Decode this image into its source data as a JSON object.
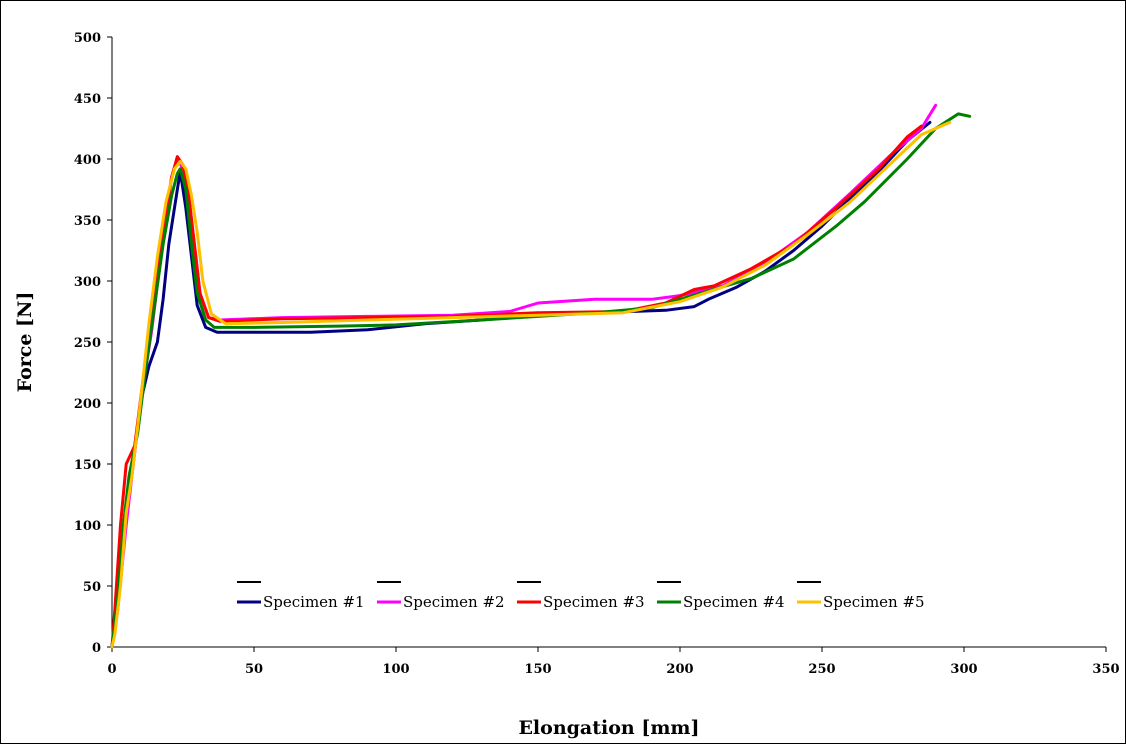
{
  "chart_data": {
    "type": "line",
    "title": "",
    "xlabel": "Elongation [mm]",
    "ylabel": "Force [N]",
    "xlim": [
      0,
      350
    ],
    "ylim": [
      0,
      500
    ],
    "x_ticks": [
      0,
      50,
      100,
      150,
      200,
      250,
      300,
      350
    ],
    "y_ticks": [
      0,
      50,
      100,
      150,
      200,
      250,
      300,
      350,
      400,
      450,
      500
    ],
    "grid": false,
    "legend_position": "bottom-center inside",
    "series": [
      {
        "name": "Specimen #1",
        "color": "#000080",
        "points": [
          [
            0,
            0
          ],
          [
            2,
            40
          ],
          [
            4,
            90
          ],
          [
            6,
            125
          ],
          [
            8,
            160
          ],
          [
            10,
            200
          ],
          [
            13,
            230
          ],
          [
            16,
            250
          ],
          [
            18,
            285
          ],
          [
            20,
            330
          ],
          [
            22,
            360
          ],
          [
            24,
            390
          ],
          [
            26,
            360
          ],
          [
            28,
            320
          ],
          [
            30,
            280
          ],
          [
            33,
            262
          ],
          [
            37,
            258
          ],
          [
            50,
            258
          ],
          [
            70,
            258
          ],
          [
            90,
            260
          ],
          [
            110,
            265
          ],
          [
            130,
            268
          ],
          [
            150,
            272
          ],
          [
            170,
            274
          ],
          [
            195,
            276
          ],
          [
            205,
            279
          ],
          [
            210,
            285
          ],
          [
            220,
            295
          ],
          [
            230,
            308
          ],
          [
            240,
            325
          ],
          [
            250,
            345
          ],
          [
            260,
            368
          ],
          [
            270,
            390
          ],
          [
            280,
            415
          ],
          [
            288,
            430
          ]
        ]
      },
      {
        "name": "Specimen #2",
        "color": "#FF00FF",
        "points": [
          [
            0,
            0
          ],
          [
            2,
            30
          ],
          [
            5,
            100
          ],
          [
            7,
            140
          ],
          [
            10,
            200
          ],
          [
            14,
            260
          ],
          [
            18,
            335
          ],
          [
            21,
            385
          ],
          [
            23,
            400
          ],
          [
            25,
            392
          ],
          [
            27,
            370
          ],
          [
            29,
            330
          ],
          [
            31,
            290
          ],
          [
            34,
            270
          ],
          [
            38,
            268
          ],
          [
            60,
            270
          ],
          [
            90,
            271
          ],
          [
            120,
            272
          ],
          [
            140,
            275
          ],
          [
            150,
            282
          ],
          [
            170,
            285
          ],
          [
            190,
            285
          ],
          [
            200,
            288
          ],
          [
            215,
            296
          ],
          [
            230,
            315
          ],
          [
            245,
            340
          ],
          [
            260,
            372
          ],
          [
            275,
            405
          ],
          [
            285,
            425
          ],
          [
            290,
            444
          ]
        ]
      },
      {
        "name": "Specimen #3",
        "color": "#FF0000",
        "points": [
          [
            0,
            0
          ],
          [
            1,
            30
          ],
          [
            3,
            100
          ],
          [
            5,
            150
          ],
          [
            8,
            165
          ],
          [
            11,
            220
          ],
          [
            14,
            275
          ],
          [
            18,
            340
          ],
          [
            21,
            385
          ],
          [
            23,
            402
          ],
          [
            25,
            395
          ],
          [
            27,
            370
          ],
          [
            29,
            330
          ],
          [
            31,
            290
          ],
          [
            34,
            270
          ],
          [
            38,
            267
          ],
          [
            60,
            269
          ],
          [
            90,
            270
          ],
          [
            120,
            271
          ],
          [
            150,
            274
          ],
          [
            180,
            275
          ],
          [
            195,
            282
          ],
          [
            205,
            293
          ],
          [
            212,
            296
          ],
          [
            225,
            310
          ],
          [
            240,
            330
          ],
          [
            255,
            360
          ],
          [
            270,
            392
          ],
          [
            280,
            418
          ],
          [
            285,
            427
          ]
        ]
      },
      {
        "name": "Specimen #4",
        "color": "#008000",
        "points": [
          [
            0,
            0
          ],
          [
            2,
            40
          ],
          [
            4,
            100
          ],
          [
            6,
            140
          ],
          [
            9,
            175
          ],
          [
            12,
            230
          ],
          [
            15,
            280
          ],
          [
            18,
            330
          ],
          [
            21,
            370
          ],
          [
            23,
            388
          ],
          [
            24,
            392
          ],
          [
            26,
            375
          ],
          [
            28,
            330
          ],
          [
            30,
            290
          ],
          [
            33,
            268
          ],
          [
            36,
            262
          ],
          [
            50,
            262
          ],
          [
            80,
            263
          ],
          [
            100,
            264
          ],
          [
            130,
            268
          ],
          [
            150,
            271
          ],
          [
            170,
            274
          ],
          [
            190,
            278
          ],
          [
            210,
            292
          ],
          [
            225,
            302
          ],
          [
            240,
            318
          ],
          [
            255,
            345
          ],
          [
            265,
            365
          ],
          [
            280,
            400
          ],
          [
            290,
            425
          ],
          [
            298,
            437
          ],
          [
            302,
            435
          ]
        ]
      },
      {
        "name": "Specimen #5",
        "color": "#FFC000",
        "points": [
          [
            0,
            0
          ],
          [
            1,
            10
          ],
          [
            3,
            50
          ],
          [
            5,
            110
          ],
          [
            7,
            140
          ],
          [
            10,
            200
          ],
          [
            13,
            265
          ],
          [
            16,
            320
          ],
          [
            19,
            365
          ],
          [
            22,
            392
          ],
          [
            24,
            398
          ],
          [
            26,
            392
          ],
          [
            28,
            370
          ],
          [
            30,
            340
          ],
          [
            32,
            300
          ],
          [
            35,
            273
          ],
          [
            40,
            265
          ],
          [
            60,
            266
          ],
          [
            90,
            268
          ],
          [
            120,
            270
          ],
          [
            150,
            272
          ],
          [
            180,
            274
          ],
          [
            200,
            283
          ],
          [
            215,
            295
          ],
          [
            230,
            313
          ],
          [
            245,
            338
          ],
          [
            260,
            365
          ],
          [
            275,
            398
          ],
          [
            285,
            420
          ],
          [
            295,
            430
          ]
        ]
      }
    ]
  }
}
